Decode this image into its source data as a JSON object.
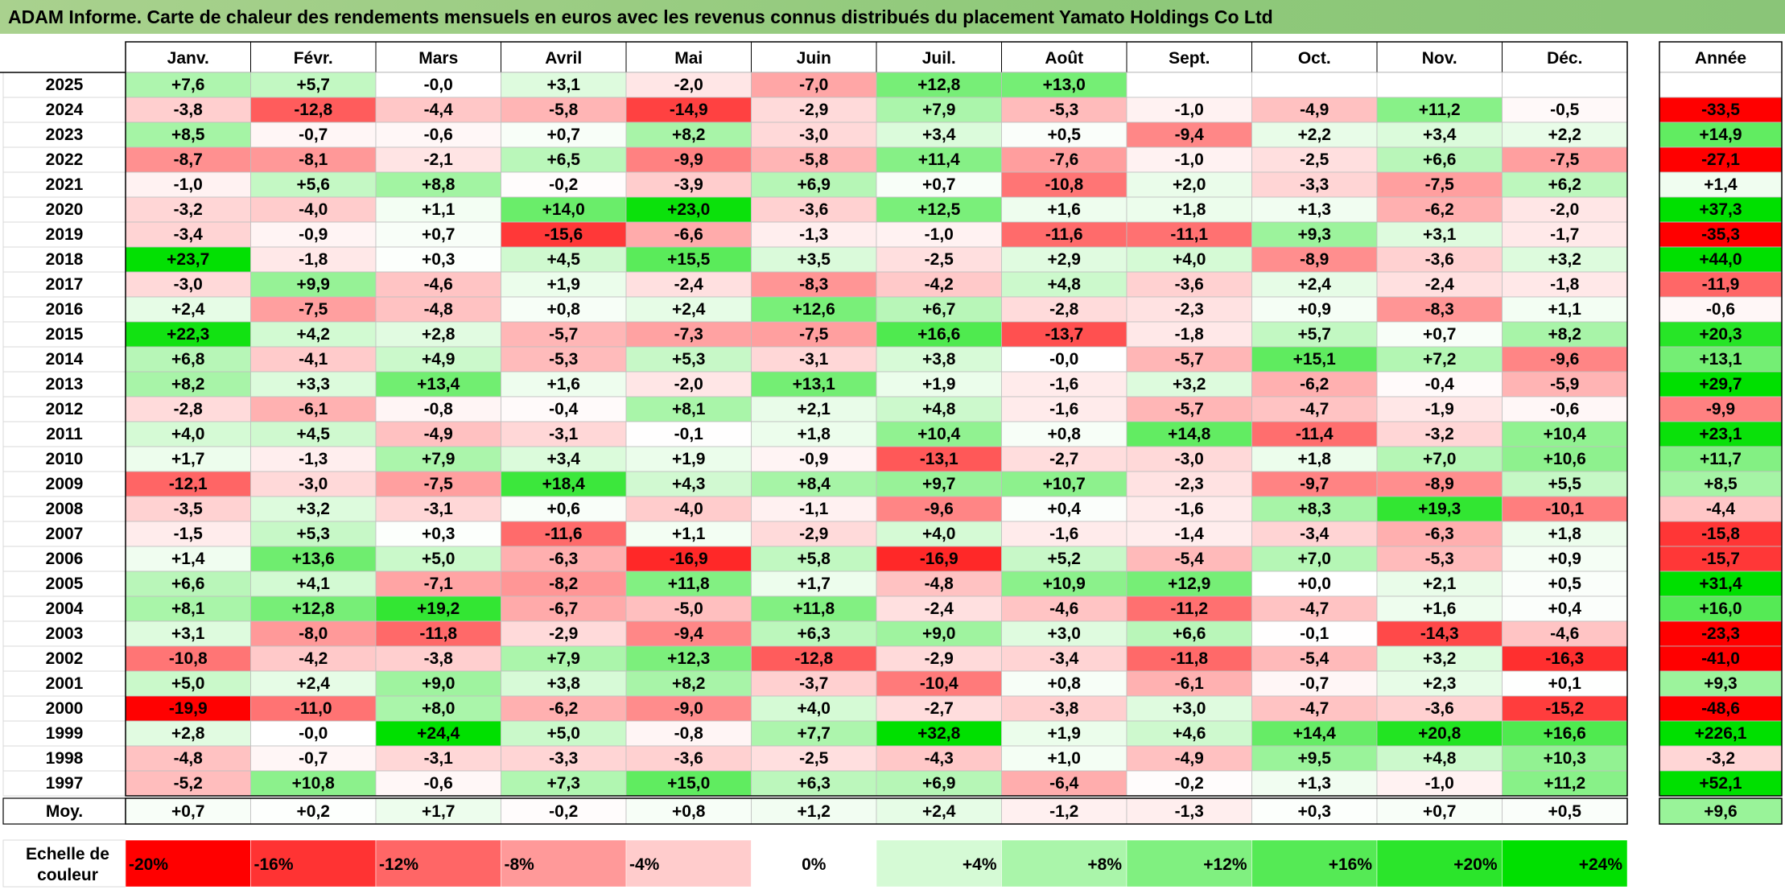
{
  "title": "ADAM Informe. Carte de chaleur des rendements mensuels en euros avec les revenus connus distribués du placement Yamato Holdings Co Ltd",
  "chart_data": {
    "type": "heatmap",
    "columns": [
      "Janv.",
      "Févr.",
      "Mars",
      "Avril",
      "Mai",
      "Juin",
      "Juil.",
      "Août",
      "Sept.",
      "Oct.",
      "Nov.",
      "Déc."
    ],
    "annual_header": "Année",
    "rows": [
      {
        "year": "2025",
        "months": [
          "+7,6",
          "+5,7",
          "-0,0",
          "+3,1",
          "-2,0",
          "-7,0",
          "+12,8",
          "+13,0",
          "",
          "",
          "",
          ""
        ],
        "annual": ""
      },
      {
        "year": "2024",
        "months": [
          "-3,8",
          "-12,8",
          "-4,4",
          "-5,8",
          "-14,9",
          "-2,9",
          "+7,9",
          "-5,3",
          "-1,0",
          "-4,9",
          "+11,2",
          "-0,5"
        ],
        "annual": "-33,5"
      },
      {
        "year": "2023",
        "months": [
          "+8,5",
          "-0,7",
          "-0,6",
          "+0,7",
          "+8,2",
          "-3,0",
          "+3,4",
          "+0,5",
          "-9,4",
          "+2,2",
          "+3,4",
          "+2,2"
        ],
        "annual": "+14,9"
      },
      {
        "year": "2022",
        "months": [
          "-8,7",
          "-8,1",
          "-2,1",
          "+6,5",
          "-9,9",
          "-5,8",
          "+11,4",
          "-7,6",
          "-1,0",
          "-2,5",
          "+6,6",
          "-7,5"
        ],
        "annual": "-27,1"
      },
      {
        "year": "2021",
        "months": [
          "-1,0",
          "+5,6",
          "+8,8",
          "-0,2",
          "-3,9",
          "+6,9",
          "+0,7",
          "-10,8",
          "+2,0",
          "-3,3",
          "-7,5",
          "+6,2"
        ],
        "annual": "+1,4"
      },
      {
        "year": "2020",
        "months": [
          "-3,2",
          "-4,0",
          "+1,1",
          "+14,0",
          "+23,0",
          "-3,6",
          "+12,5",
          "+1,6",
          "+1,8",
          "+1,3",
          "-6,2",
          "-2,0"
        ],
        "annual": "+37,3"
      },
      {
        "year": "2019",
        "months": [
          "-3,4",
          "-0,9",
          "+0,7",
          "-15,6",
          "-6,6",
          "-1,3",
          "-1,0",
          "-11,6",
          "-11,1",
          "+9,3",
          "+3,1",
          "-1,7"
        ],
        "annual": "-35,3"
      },
      {
        "year": "2018",
        "months": [
          "+23,7",
          "-1,8",
          "+0,3",
          "+4,5",
          "+15,5",
          "+3,5",
          "-2,5",
          "+2,9",
          "+4,0",
          "-8,9",
          "-3,6",
          "+3,2"
        ],
        "annual": "+44,0"
      },
      {
        "year": "2017",
        "months": [
          "-3,0",
          "+9,9",
          "-4,6",
          "+1,9",
          "-2,4",
          "-8,3",
          "-4,2",
          "+4,8",
          "-3,6",
          "+2,4",
          "-2,4",
          "-1,8"
        ],
        "annual": "-11,9"
      },
      {
        "year": "2016",
        "months": [
          "+2,4",
          "-7,5",
          "-4,8",
          "+0,8",
          "+2,4",
          "+12,6",
          "+6,7",
          "-2,8",
          "-2,3",
          "+0,9",
          "-8,3",
          "+1,1"
        ],
        "annual": "-0,6"
      },
      {
        "year": "2015",
        "months": [
          "+22,3",
          "+4,2",
          "+2,8",
          "-5,7",
          "-7,3",
          "-7,5",
          "+16,6",
          "-13,7",
          "-1,8",
          "+5,7",
          "+0,7",
          "+8,2"
        ],
        "annual": "+20,3"
      },
      {
        "year": "2014",
        "months": [
          "+6,8",
          "-4,1",
          "+4,9",
          "-5,3",
          "+5,3",
          "-3,1",
          "+3,8",
          "-0,0",
          "-5,7",
          "+15,1",
          "+7,2",
          "-9,6"
        ],
        "annual": "+13,1"
      },
      {
        "year": "2013",
        "months": [
          "+8,2",
          "+3,3",
          "+13,4",
          "+1,6",
          "-2,0",
          "+13,1",
          "+1,9",
          "-1,6",
          "+3,2",
          "-6,2",
          "-0,4",
          "-5,9"
        ],
        "annual": "+29,7"
      },
      {
        "year": "2012",
        "months": [
          "-2,8",
          "-6,1",
          "-0,8",
          "-0,4",
          "+8,1",
          "+2,1",
          "+4,8",
          "-1,6",
          "-5,7",
          "-4,7",
          "-1,9",
          "-0,6"
        ],
        "annual": "-9,9"
      },
      {
        "year": "2011",
        "months": [
          "+4,0",
          "+4,5",
          "-4,9",
          "-3,1",
          "-0,1",
          "+1,8",
          "+10,4",
          "+0,8",
          "+14,8",
          "-11,4",
          "-3,2",
          "+10,4"
        ],
        "annual": "+23,1"
      },
      {
        "year": "2010",
        "months": [
          "+1,7",
          "-1,3",
          "+7,9",
          "+3,4",
          "+1,9",
          "-0,9",
          "-13,1",
          "-2,7",
          "-3,0",
          "+1,8",
          "+7,0",
          "+10,6"
        ],
        "annual": "+11,7"
      },
      {
        "year": "2009",
        "months": [
          "-12,1",
          "-3,0",
          "-7,5",
          "+18,4",
          "+4,3",
          "+8,4",
          "+9,7",
          "+10,7",
          "-2,3",
          "-9,7",
          "-8,9",
          "+5,5"
        ],
        "annual": "+8,5"
      },
      {
        "year": "2008",
        "months": [
          "-3,5",
          "+3,2",
          "-3,1",
          "+0,6",
          "-4,0",
          "-1,1",
          "-9,6",
          "+0,4",
          "-1,6",
          "+8,3",
          "+19,3",
          "-10,1"
        ],
        "annual": "-4,4"
      },
      {
        "year": "2007",
        "months": [
          "-1,5",
          "+5,3",
          "+0,3",
          "-11,6",
          "+1,1",
          "-2,9",
          "+4,0",
          "-1,6",
          "-1,4",
          "-3,4",
          "-6,3",
          "+1,8"
        ],
        "annual": "-15,8"
      },
      {
        "year": "2006",
        "months": [
          "+1,4",
          "+13,6",
          "+5,0",
          "-6,3",
          "-16,9",
          "+5,8",
          "-16,9",
          "+5,2",
          "-5,4",
          "+7,0",
          "-5,3",
          "+0,9"
        ],
        "annual": "-15,7"
      },
      {
        "year": "2005",
        "months": [
          "+6,6",
          "+4,1",
          "-7,1",
          "-8,2",
          "+11,8",
          "+1,7",
          "-4,8",
          "+10,9",
          "+12,9",
          "+0,0",
          "+2,1",
          "+0,5"
        ],
        "annual": "+31,4"
      },
      {
        "year": "2004",
        "months": [
          "+8,1",
          "+12,8",
          "+19,2",
          "-6,7",
          "-5,0",
          "+11,8",
          "-2,4",
          "-4,6",
          "-11,2",
          "-4,7",
          "+1,6",
          "+0,4"
        ],
        "annual": "+16,0"
      },
      {
        "year": "2003",
        "months": [
          "+3,1",
          "-8,0",
          "-11,8",
          "-2,9",
          "-9,4",
          "+6,3",
          "+9,0",
          "+3,0",
          "+6,6",
          "-0,1",
          "-14,3",
          "-4,6"
        ],
        "annual": "-23,3"
      },
      {
        "year": "2002",
        "months": [
          "-10,8",
          "-4,2",
          "-3,8",
          "+7,9",
          "+12,3",
          "-12,8",
          "-2,9",
          "-3,4",
          "-11,8",
          "-5,4",
          "+3,2",
          "-16,3"
        ],
        "annual": "-41,0"
      },
      {
        "year": "2001",
        "months": [
          "+5,0",
          "+2,4",
          "+9,0",
          "+3,8",
          "+8,2",
          "-3,7",
          "-10,4",
          "+0,8",
          "-6,1",
          "-0,7",
          "+2,3",
          "+0,1"
        ],
        "annual": "+9,3"
      },
      {
        "year": "2000",
        "months": [
          "-19,9",
          "-11,0",
          "+8,0",
          "-6,2",
          "-9,0",
          "+4,0",
          "-2,7",
          "-3,8",
          "+3,0",
          "-4,7",
          "-3,6",
          "-15,2"
        ],
        "annual": "-48,6"
      },
      {
        "year": "1999",
        "months": [
          "+2,8",
          "-0,0",
          "+24,4",
          "+5,0",
          "-0,8",
          "+7,7",
          "+32,8",
          "+1,9",
          "+4,6",
          "+14,4",
          "+20,8",
          "+16,6"
        ],
        "annual": "+226,1"
      },
      {
        "year": "1998",
        "months": [
          "-4,8",
          "-0,7",
          "-3,1",
          "-3,3",
          "-3,6",
          "-2,5",
          "-4,3",
          "+1,0",
          "-4,9",
          "+9,5",
          "+4,8",
          "+10,3"
        ],
        "annual": "-3,2"
      },
      {
        "year": "1997",
        "months": [
          "-5,2",
          "+10,8",
          "-0,6",
          "+7,3",
          "+15,0",
          "+6,3",
          "+6,9",
          "-6,4",
          "-0,2",
          "+1,3",
          "-1,0",
          "+11,2"
        ],
        "annual": "+52,1"
      }
    ],
    "average": {
      "label": "Moy.",
      "months": [
        "+0,7",
        "+0,2",
        "+1,7",
        "-0,2",
        "+0,8",
        "+1,2",
        "+2,4",
        "-1,2",
        "-1,3",
        "+0,3",
        "+0,7",
        "+0,5"
      ],
      "annual": "+9,6"
    },
    "legend": {
      "title_lines": [
        "Echelle de",
        "couleur"
      ],
      "steps": [
        {
          "label": "-20%",
          "value": -20,
          "align": "left"
        },
        {
          "label": "-16%",
          "value": -16,
          "align": "left"
        },
        {
          "label": "-12%",
          "value": -12,
          "align": "left"
        },
        {
          "label": "-8%",
          "value": -8,
          "align": "left"
        },
        {
          "label": "-4%",
          "value": -4,
          "align": "left"
        },
        {
          "label": "0%",
          "value": 0,
          "align": "center"
        },
        {
          "label": "+4%",
          "value": 4,
          "align": "right"
        },
        {
          "label": "+8%",
          "value": 8,
          "align": "right"
        },
        {
          "label": "+12%",
          "value": 12,
          "align": "right"
        },
        {
          "label": "+16%",
          "value": 16,
          "align": "right"
        },
        {
          "label": "+20%",
          "value": 20,
          "align": "right"
        },
        {
          "label": "+24%",
          "value": 24,
          "align": "right"
        }
      ]
    },
    "color_scale": {
      "negative_max": "#ff0000",
      "neutral": "#ffffff",
      "positive_max": "#00e000",
      "clip_negative": -20,
      "clip_positive": 24
    }
  }
}
